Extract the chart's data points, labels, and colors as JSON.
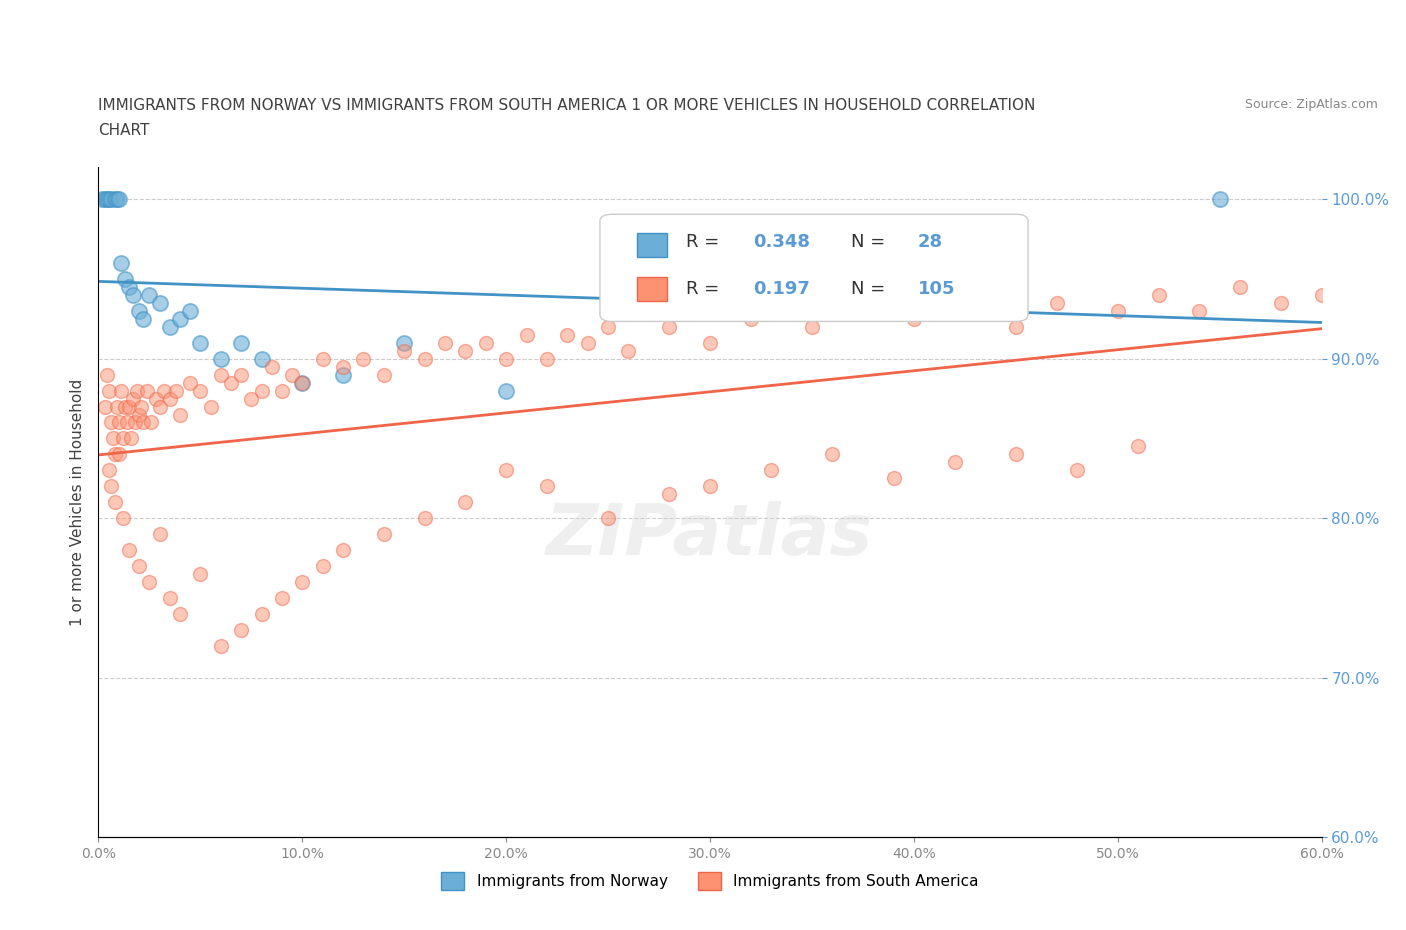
{
  "title_line1": "IMMIGRANTS FROM NORWAY VS IMMIGRANTS FROM SOUTH AMERICA 1 OR MORE VEHICLES IN HOUSEHOLD CORRELATION",
  "title_line2": "CHART",
  "source_text": "Source: ZipAtlas.com",
  "ylabel": "1 or more Vehicles in Household",
  "xlabel": "",
  "xlim": [
    0.0,
    60.0
  ],
  "ylim": [
    60.0,
    102.0
  ],
  "yticks": [
    60.0,
    70.0,
    80.0,
    90.0,
    100.0
  ],
  "xticks": [
    0.0,
    10.0,
    20.0,
    30.0,
    40.0,
    50.0,
    60.0
  ],
  "norway_color": "#6baed6",
  "norway_edge": "#4292c6",
  "south_america_color": "#fc9272",
  "south_america_edge": "#ef6548",
  "norway_R": 0.348,
  "norway_N": 28,
  "south_america_R": 0.197,
  "south_america_N": 105,
  "norway_x": [
    0.2,
    0.3,
    0.4,
    0.5,
    0.6,
    0.8,
    0.9,
    1.0,
    1.1,
    1.3,
    1.5,
    1.7,
    2.0,
    2.2,
    2.5,
    3.0,
    3.5,
    4.0,
    4.5,
    5.0,
    6.0,
    7.0,
    8.0,
    10.0,
    12.0,
    15.0,
    20.0,
    55.0
  ],
  "norway_y": [
    100.0,
    100.0,
    100.0,
    100.0,
    100.0,
    100.0,
    100.0,
    100.0,
    96.0,
    95.0,
    94.5,
    94.0,
    93.0,
    92.5,
    94.0,
    93.5,
    92.0,
    92.5,
    93.0,
    91.0,
    90.0,
    91.0,
    90.0,
    88.5,
    89.0,
    91.0,
    88.0,
    100.0
  ],
  "south_america_x": [
    0.3,
    0.4,
    0.5,
    0.6,
    0.7,
    0.8,
    0.9,
    1.0,
    1.1,
    1.2,
    1.3,
    1.4,
    1.5,
    1.6,
    1.7,
    1.8,
    1.9,
    2.0,
    2.1,
    2.2,
    2.4,
    2.6,
    2.8,
    3.0,
    3.2,
    3.5,
    3.8,
    4.0,
    4.5,
    5.0,
    5.5,
    6.0,
    6.5,
    7.0,
    7.5,
    8.0,
    8.5,
    9.0,
    9.5,
    10.0,
    11.0,
    12.0,
    13.0,
    14.0,
    15.0,
    16.0,
    17.0,
    18.0,
    19.0,
    20.0,
    21.0,
    22.0,
    23.0,
    24.0,
    25.0,
    26.0,
    28.0,
    30.0,
    32.0,
    35.0,
    38.0,
    40.0,
    43.0,
    45.0,
    47.0,
    50.0,
    52.0,
    54.0,
    56.0,
    58.0,
    60.0,
    0.5,
    0.6,
    0.8,
    1.0,
    1.2,
    1.5,
    2.0,
    2.5,
    3.0,
    3.5,
    4.0,
    5.0,
    6.0,
    7.0,
    8.0,
    9.0,
    10.0,
    11.0,
    12.0,
    14.0,
    16.0,
    18.0,
    20.0,
    22.0,
    25.0,
    28.0,
    30.0,
    33.0,
    36.0,
    39.0,
    42.0,
    45.0,
    48.0,
    51.0
  ],
  "south_america_y": [
    87.0,
    89.0,
    88.0,
    86.0,
    85.0,
    84.0,
    87.0,
    86.0,
    88.0,
    85.0,
    87.0,
    86.0,
    87.0,
    85.0,
    87.5,
    86.0,
    88.0,
    86.5,
    87.0,
    86.0,
    88.0,
    86.0,
    87.5,
    87.0,
    88.0,
    87.5,
    88.0,
    86.5,
    88.5,
    88.0,
    87.0,
    89.0,
    88.5,
    89.0,
    87.5,
    88.0,
    89.5,
    88.0,
    89.0,
    88.5,
    90.0,
    89.5,
    90.0,
    89.0,
    90.5,
    90.0,
    91.0,
    90.5,
    91.0,
    90.0,
    91.5,
    90.0,
    91.5,
    91.0,
    92.0,
    90.5,
    92.0,
    91.0,
    92.5,
    92.0,
    93.0,
    92.5,
    93.0,
    92.0,
    93.5,
    93.0,
    94.0,
    93.0,
    94.5,
    93.5,
    94.0,
    83.0,
    82.0,
    81.0,
    84.0,
    80.0,
    78.0,
    77.0,
    76.0,
    79.0,
    75.0,
    74.0,
    76.5,
    72.0,
    73.0,
    74.0,
    75.0,
    76.0,
    77.0,
    78.0,
    79.0,
    80.0,
    81.0,
    83.0,
    82.0,
    80.0,
    81.5,
    82.0,
    83.0,
    84.0,
    82.5,
    83.5,
    84.0,
    83.0,
    84.5
  ],
  "watermark_text": "ZIPatlas",
  "background_color": "#ffffff",
  "legend_norway_label": "Immigrants from Norway",
  "legend_sa_label": "Immigrants from South America",
  "tick_label_color": "#5b9bd5",
  "title_color": "#404040",
  "axis_label_color": "#404040"
}
